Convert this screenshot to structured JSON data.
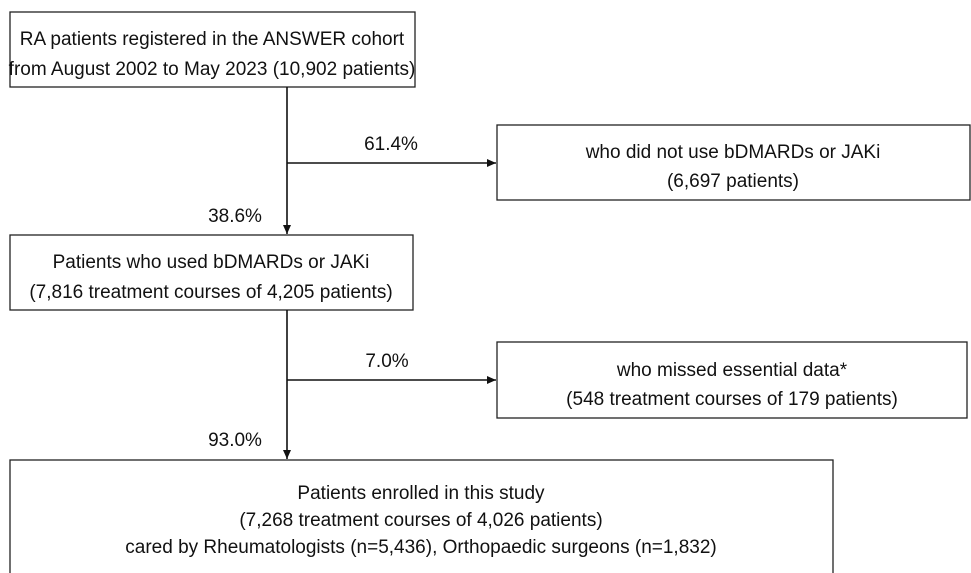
{
  "nodes": [
    {
      "lines": [
        "RA patients registered in the ANSWER cohort",
        "from August 2002 to May 2023 (10,902 patients)"
      ]
    },
    {
      "lines": [
        "who did not use bDMARDs or JAKi",
        "(6,697 patients)"
      ]
    },
    {
      "lines": [
        "Patients who used bDMARDs or JAKi",
        "(7,816 treatment courses of 4,205 patients)"
      ]
    },
    {
      "lines": [
        "who missed essential data*",
        "(548 treatment courses of 179 patients)"
      ]
    },
    {
      "lines": [
        "Patients enrolled in this study",
        "(7,268 treatment courses of 4,026 patients)",
        "cared by Rheumatologists (n=5,436), Orthopaedic surgeons (n=1,832)"
      ]
    }
  ],
  "edges": [
    {
      "label": "61.4%"
    },
    {
      "label": "38.6%"
    },
    {
      "label": "7.0%"
    },
    {
      "label": "93.0%"
    }
  ]
}
